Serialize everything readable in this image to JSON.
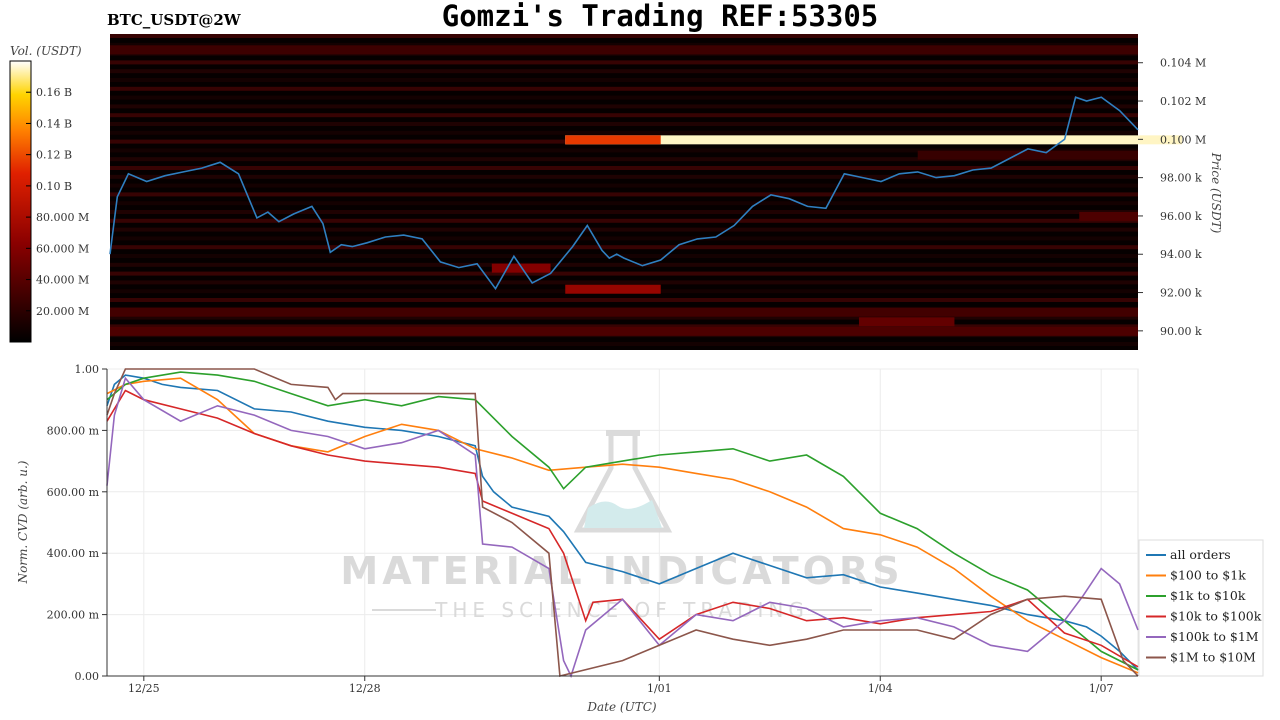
{
  "header": {
    "title": "Gomzi's Trading REF:53305",
    "symbol": "BTC_USDT@2W"
  },
  "watermark": {
    "name": "MATERIAL INDICATORS",
    "tagline": "THE SCIENCE OF TRADING"
  },
  "colors": {
    "btc_line": "#2f7fc0",
    "heatmap_bg": "#060000",
    "legend_border": "#dddddd"
  },
  "chart_data": [
    {
      "type": "heatmap",
      "title": "Gomzi's Trading REF:53305",
      "subtitle": "BTC_USDT@2W",
      "ylabel": "Price (USDT)",
      "ylim": [
        89000,
        105500
      ],
      "y_ticks": [
        {
          "v": 90000,
          "label": "90.00 k"
        },
        {
          "v": 92000,
          "label": "92.00 k"
        },
        {
          "v": 94000,
          "label": "94.00 k"
        },
        {
          "v": 96000,
          "label": "96.00 k"
        },
        {
          "v": 98000,
          "label": "98.00 k"
        },
        {
          "v": 100000,
          "label": "0.100 M"
        },
        {
          "v": 102000,
          "label": "0.102 M"
        },
        {
          "v": 104000,
          "label": "0.104 M"
        }
      ],
      "colorbar": {
        "label": "Vol. (USDT)",
        "range": [
          0,
          180000000
        ],
        "ticks": [
          {
            "v": 20000000,
            "label": "20.000 M"
          },
          {
            "v": 40000000,
            "label": "40.000 M"
          },
          {
            "v": 60000000,
            "label": "60.000 M"
          },
          {
            "v": 80000000,
            "label": "80.000 M"
          },
          {
            "v": 100000000,
            "label": "0.10 B"
          },
          {
            "v": 120000000,
            "label": "0.12 B"
          },
          {
            "v": 140000000,
            "label": "0.14 B"
          },
          {
            "v": 160000000,
            "label": "0.16 B"
          }
        ]
      },
      "bands": [
        {
          "price": 100000,
          "t0": 6.2,
          "t1": 14.6,
          "vol": 175000000
        },
        {
          "price": 100000,
          "t0": 6.2,
          "t1": 7.5,
          "vol": 115000000
        },
        {
          "price": 92200,
          "t0": 6.2,
          "t1": 7.5,
          "vol": 70000000
        },
        {
          "price": 93300,
          "t0": 5.2,
          "t1": 6.0,
          "vol": 60000000
        },
        {
          "price": 90500,
          "t0": 10.2,
          "t1": 11.5,
          "vol": 45000000
        },
        {
          "price": 90000,
          "t0": 0,
          "t1": 14.0,
          "vol": 35000000
        },
        {
          "price": 91000,
          "t0": 0,
          "t1": 14.0,
          "vol": 30000000
        },
        {
          "price": 104700,
          "t0": 0,
          "t1": 14.0,
          "vol": 28000000
        },
        {
          "price": 96000,
          "t0": 13.2,
          "t1": 14.0,
          "vol": 35000000
        },
        {
          "price": 99200,
          "t0": 11.0,
          "t1": 14.0,
          "vol": 25000000
        }
      ],
      "series": [
        {
          "name": "BTC price",
          "x": [
            0,
            0.1,
            0.25,
            0.5,
            0.75,
            1.0,
            1.25,
            1.5,
            1.75,
            2.0,
            2.15,
            2.3,
            2.5,
            2.75,
            2.9,
            3.0,
            3.15,
            3.3,
            3.5,
            3.75,
            4.0,
            4.25,
            4.5,
            4.75,
            5.0,
            5.25,
            5.5,
            5.75,
            6.0,
            6.3,
            6.5,
            6.7,
            6.8,
            6.9,
            7.0,
            7.25,
            7.5,
            7.75,
            8.0,
            8.25,
            8.5,
            8.75,
            9.0,
            9.25,
            9.5,
            9.75,
            10.0,
            10.25,
            10.5,
            10.75,
            11.0,
            11.25,
            11.5,
            11.75,
            12.0,
            12.25,
            12.5,
            12.75,
            13.0,
            13.15,
            13.3,
            13.5,
            13.75,
            14.0
          ],
          "y": [
            94000,
            97000,
            98200,
            97800,
            98100,
            98300,
            98500,
            98800,
            98200,
            95900,
            96200,
            95700,
            96100,
            96500,
            95600,
            94100,
            94500,
            94400,
            94600,
            94900,
            95000,
            94800,
            93600,
            93300,
            93500,
            92200,
            93900,
            92500,
            93000,
            94400,
            95500,
            94200,
            93800,
            94000,
            93800,
            93400,
            93700,
            94500,
            94800,
            94900,
            95500,
            96500,
            97100,
            96900,
            96500,
            96400,
            98200,
            98000,
            97800,
            98200,
            98300,
            98000,
            98100,
            98400,
            98500,
            99000,
            99500,
            99300,
            100000,
            102200,
            102000,
            102200,
            101500,
            100500
          ]
        }
      ]
    },
    {
      "type": "line",
      "xlabel": "Date (UTC)",
      "ylabel": "Norm. CVD (arb. u.)",
      "ylim": [
        0,
        1
      ],
      "xlim": [
        0,
        14
      ],
      "grid": true,
      "legend_position": "right",
      "y_ticks": [
        {
          "v": 0,
          "label": "0.00"
        },
        {
          "v": 0.2,
          "label": "200.00 m"
        },
        {
          "v": 0.4,
          "label": "400.00 m"
        },
        {
          "v": 0.6,
          "label": "600.00 m"
        },
        {
          "v": 0.8,
          "label": "800.00 m"
        },
        {
          "v": 1,
          "label": "1.00"
        }
      ],
      "x_ticks": [
        {
          "v": 0.5,
          "label": "12/25"
        },
        {
          "v": 3.5,
          "label": "12/28"
        },
        {
          "v": 7.5,
          "label": "1/01"
        },
        {
          "v": 10.5,
          "label": "1/04"
        },
        {
          "v": 13.5,
          "label": "1/07"
        }
      ],
      "series": [
        {
          "name": "all orders",
          "color": "#1f77b4",
          "x": [
            0,
            0.1,
            0.25,
            0.5,
            0.75,
            1.0,
            1.5,
            2.0,
            2.5,
            3.0,
            3.5,
            4.0,
            4.5,
            5.0,
            5.1,
            5.25,
            5.5,
            6.0,
            6.2,
            6.5,
            7.0,
            7.5,
            8.0,
            8.5,
            9.0,
            9.5,
            10.0,
            10.5,
            11.0,
            11.5,
            12.0,
            12.5,
            13.0,
            13.3,
            13.5,
            13.75,
            14.0
          ],
          "y": [
            0.88,
            0.95,
            0.98,
            0.97,
            0.95,
            0.94,
            0.93,
            0.87,
            0.86,
            0.83,
            0.81,
            0.8,
            0.78,
            0.75,
            0.65,
            0.6,
            0.55,
            0.52,
            0.47,
            0.37,
            0.34,
            0.3,
            0.35,
            0.4,
            0.36,
            0.32,
            0.33,
            0.29,
            0.27,
            0.25,
            0.23,
            0.2,
            0.18,
            0.16,
            0.13,
            0.08,
            0.02
          ]
        },
        {
          "name": "$100 to $1k",
          "color": "#ff7f0e",
          "x": [
            0,
            0.25,
            0.5,
            1.0,
            1.5,
            2.0,
            2.5,
            3.0,
            3.5,
            4.0,
            4.5,
            5.0,
            5.5,
            6.0,
            6.5,
            7.0,
            7.5,
            8.0,
            8.5,
            9.0,
            9.5,
            10.0,
            10.5,
            11.0,
            11.5,
            12.0,
            12.5,
            13.0,
            13.5,
            14.0
          ],
          "y": [
            0.92,
            0.95,
            0.96,
            0.97,
            0.9,
            0.79,
            0.75,
            0.73,
            0.78,
            0.82,
            0.8,
            0.74,
            0.71,
            0.67,
            0.68,
            0.69,
            0.68,
            0.66,
            0.64,
            0.6,
            0.55,
            0.48,
            0.46,
            0.42,
            0.35,
            0.26,
            0.18,
            0.12,
            0.06,
            0.01
          ]
        },
        {
          "name": "$1k to $10k",
          "color": "#2ca02c",
          "x": [
            0,
            0.25,
            0.5,
            1.0,
            1.5,
            2.0,
            2.5,
            3.0,
            3.5,
            4.0,
            4.5,
            5.0,
            5.5,
            6.0,
            6.2,
            6.5,
            7.0,
            7.5,
            8.0,
            8.5,
            9.0,
            9.5,
            10.0,
            10.5,
            11.0,
            11.5,
            12.0,
            12.5,
            13.0,
            13.5,
            14.0
          ],
          "y": [
            0.9,
            0.95,
            0.97,
            0.99,
            0.98,
            0.96,
            0.92,
            0.88,
            0.9,
            0.88,
            0.91,
            0.9,
            0.78,
            0.68,
            0.61,
            0.68,
            0.7,
            0.72,
            0.73,
            0.74,
            0.7,
            0.72,
            0.65,
            0.53,
            0.48,
            0.4,
            0.33,
            0.28,
            0.18,
            0.08,
            0.02
          ]
        },
        {
          "name": "$10k to $100k",
          "color": "#d62728",
          "x": [
            0,
            0.25,
            0.5,
            1.0,
            1.5,
            2.0,
            2.5,
            3.0,
            3.5,
            4.0,
            4.5,
            5.0,
            5.1,
            5.5,
            6.0,
            6.2,
            6.5,
            6.6,
            7.0,
            7.5,
            8.0,
            8.5,
            9.0,
            9.5,
            10.0,
            10.5,
            11.0,
            11.5,
            12.0,
            12.5,
            13.0,
            13.5,
            14.0
          ],
          "y": [
            0.83,
            0.93,
            0.9,
            0.87,
            0.84,
            0.79,
            0.75,
            0.72,
            0.7,
            0.69,
            0.68,
            0.66,
            0.57,
            0.53,
            0.48,
            0.4,
            0.18,
            0.24,
            0.25,
            0.12,
            0.2,
            0.24,
            0.22,
            0.18,
            0.19,
            0.17,
            0.19,
            0.2,
            0.21,
            0.25,
            0.14,
            0.1,
            0.03
          ]
        },
        {
          "name": "$100k to $1M",
          "color": "#9467bd",
          "x": [
            0,
            0.1,
            0.25,
            0.5,
            1.0,
            1.5,
            2.0,
            2.5,
            3.0,
            3.5,
            4.0,
            4.5,
            5.0,
            5.1,
            5.5,
            6.0,
            6.2,
            6.3,
            6.5,
            7.0,
            7.5,
            8.0,
            8.5,
            9.0,
            9.5,
            10.0,
            10.5,
            11.0,
            11.5,
            12.0,
            12.5,
            13.0,
            13.25,
            13.5,
            13.75,
            14.0
          ],
          "y": [
            0.62,
            0.85,
            0.97,
            0.9,
            0.83,
            0.88,
            0.85,
            0.8,
            0.78,
            0.74,
            0.76,
            0.8,
            0.72,
            0.43,
            0.42,
            0.35,
            0.05,
            0.0,
            0.15,
            0.25,
            0.1,
            0.2,
            0.18,
            0.24,
            0.22,
            0.16,
            0.18,
            0.19,
            0.16,
            0.1,
            0.08,
            0.18,
            0.26,
            0.35,
            0.3,
            0.15
          ]
        },
        {
          "name": "$1M to $10M",
          "color": "#8c564b",
          "x": [
            0,
            0.1,
            0.25,
            2.0,
            2.5,
            3.0,
            3.1,
            3.2,
            5.0,
            5.1,
            5.5,
            6.0,
            6.15,
            7.0,
            7.5,
            8.0,
            8.5,
            9.0,
            9.5,
            10.0,
            11.0,
            11.5,
            12.0,
            12.5,
            13.0,
            13.5,
            13.8,
            14.0
          ],
          "y": [
            0.85,
            0.92,
            1.0,
            1.0,
            0.95,
            0.94,
            0.9,
            0.92,
            0.92,
            0.55,
            0.5,
            0.4,
            0.0,
            0.05,
            0.1,
            0.15,
            0.12,
            0.1,
            0.12,
            0.15,
            0.15,
            0.12,
            0.2,
            0.25,
            0.26,
            0.25,
            0.05,
            0.0
          ]
        }
      ]
    }
  ]
}
